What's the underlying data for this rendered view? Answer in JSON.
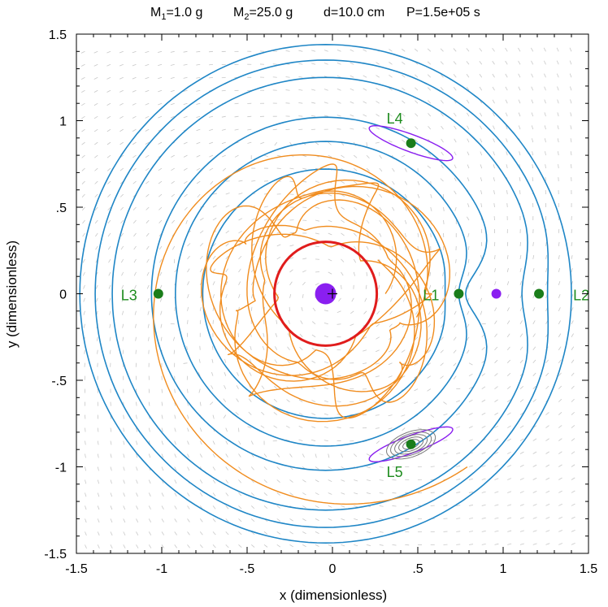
{
  "title": {
    "m1_base": "M",
    "m1_sub": "1",
    "m1_rest": "=1.0 g",
    "m2_base": "M",
    "m2_sub": "2",
    "m2_rest": "=25.0 g",
    "d": "d=10.0 cm",
    "p": "P=1.5e+05 s"
  },
  "chart_data": {
    "type": "scatter",
    "xlabel": "x (dimensionless)",
    "ylabel": "y (dimensionless)",
    "xlim": [
      -1.5,
      1.5
    ],
    "ylim": [
      -1.5,
      1.5
    ],
    "xticks": [
      -1.5,
      -1,
      -0.5,
      0,
      0.5,
      1,
      1.5
    ],
    "xtick_labels": [
      "-1.5",
      "-1",
      "-.5",
      "0",
      ".5",
      "1",
      "1.5"
    ],
    "yticks": [
      -1.5,
      -1,
      -0.5,
      0,
      0.5,
      1,
      1.5
    ],
    "ytick_labels": [
      "-1.5",
      "-1",
      "-.5",
      "0",
      ".5",
      "1",
      "1.5"
    ],
    "grid": false,
    "points": [
      {
        "label": "L1",
        "x": 0.74,
        "y": 0.0
      },
      {
        "label": "L2",
        "x": 1.21,
        "y": 0.0
      },
      {
        "label": "L3",
        "x": -1.02,
        "y": 0.0
      },
      {
        "label": "L4",
        "x": 0.46,
        "y": 0.87
      },
      {
        "label": "L5",
        "x": 0.46,
        "y": -0.87
      }
    ],
    "bodies": [
      {
        "name": "M2",
        "x": -0.04,
        "y": 0.0
      },
      {
        "name": "M1",
        "x": 0.96,
        "y": 0.0
      }
    ],
    "red_circle": {
      "x": -0.04,
      "y": 0.0,
      "r": 0.3
    },
    "colors": {
      "contour": "#1f86c6",
      "trajectory": "#f08c1e",
      "lagrange": "#1a7d1a",
      "body": "#8a1ff0",
      "red_circle": "#e01c1c",
      "vector_field": "#c8c8c8"
    }
  }
}
